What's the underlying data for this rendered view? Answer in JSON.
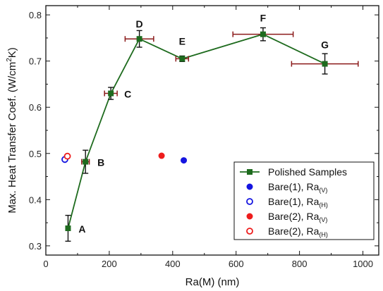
{
  "chart_data": {
    "type": "scatter",
    "xlabel": "Ra(M) (nm)",
    "ylabel": "Max. Heat Transfer Coef. (W/cm²K)",
    "ylabel_main": "Max. Heat Transfer Coef. (W/cm",
    "ylabel_sup": "2",
    "ylabel_end": "K)",
    "xlim": [
      0,
      1050
    ],
    "ylim": [
      0.28,
      0.82
    ],
    "xticks": [
      0,
      200,
      400,
      600,
      800,
      1000
    ],
    "yticks": [
      0.3,
      0.4,
      0.5,
      0.6,
      0.7,
      0.8
    ],
    "ytick_labels": [
      "0.3",
      "0.4",
      "0.5",
      "0.6",
      "0.7",
      "0.8"
    ],
    "grid": false,
    "legend_position": "bottom-right",
    "series": [
      {
        "name": "Polished Samples",
        "marker": "filled-square",
        "color": "#1e6b1e",
        "line": true,
        "points": [
          {
            "label": "A",
            "x": 70,
            "y": 0.338,
            "xerr": 0,
            "yerr": 0.028
          },
          {
            "label": "B",
            "x": 125,
            "y": 0.482,
            "xerr": 12,
            "yerr": 0.025
          },
          {
            "label": "C",
            "x": 205,
            "y": 0.63,
            "xerr": 20,
            "yerr": 0.013
          },
          {
            "label": "D",
            "x": 295,
            "y": 0.748,
            "xerr": 45,
            "yerr": 0.018
          },
          {
            "label": "E",
            "x": 430,
            "y": 0.705,
            "xerr": 20,
            "yerr": 0.006
          },
          {
            "label": "F",
            "x": 685,
            "y": 0.758,
            "xerr": 95,
            "yerr": 0.014
          },
          {
            "label": "G",
            "x": 880,
            "y": 0.694,
            "xerr": 105,
            "yerr": 0.022
          }
        ]
      },
      {
        "name": "Bare(1), Ra",
        "subscript": "(V)",
        "marker": "filled-circle",
        "color": "#1515e0",
        "points": [
          {
            "x": 435,
            "y": 0.485
          }
        ]
      },
      {
        "name": "Bare(1), Ra",
        "subscript": "(H)",
        "marker": "open-circle",
        "color": "#1515e0",
        "points": [
          {
            "x": 60,
            "y": 0.487
          }
        ]
      },
      {
        "name": "Bare(2), Ra",
        "subscript": "(V)",
        "marker": "filled-circle",
        "color": "#ee1c1c",
        "points": [
          {
            "x": 365,
            "y": 0.495
          }
        ]
      },
      {
        "name": "Bare(2), Ra",
        "subscript": "(H)",
        "marker": "open-circle",
        "color": "#ee1c1c",
        "points": [
          {
            "x": 68,
            "y": 0.494
          }
        ]
      }
    ],
    "errorbar_x_color": "#8b1a1a",
    "errorbar_y_color": "#111111"
  }
}
